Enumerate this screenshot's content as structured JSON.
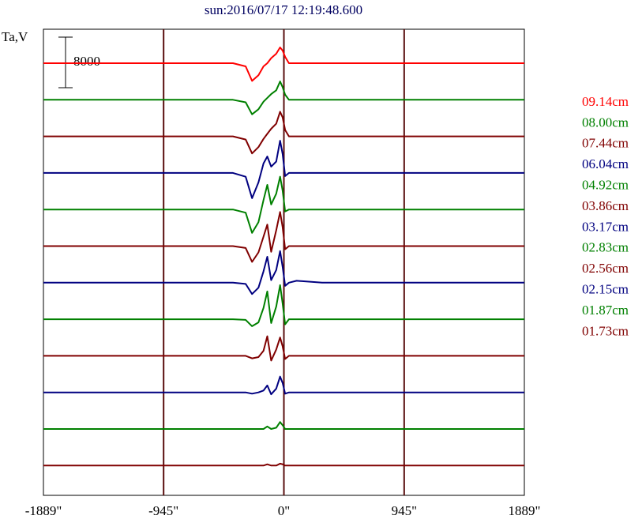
{
  "chart_data": {
    "type": "line",
    "title": "sun:2016/07/17 12:19:48.600",
    "y_label": "Ta,V",
    "scale_bar": 8000,
    "x": [
      -1889,
      -945,
      -400,
      -300,
      -250,
      -200,
      -160,
      -130,
      -100,
      -60,
      -30,
      -10,
      10,
      40,
      100,
      300,
      945,
      1889
    ],
    "xlim": [
      -1889,
      1889
    ],
    "xticks": [
      {
        "value": -1889,
        "label": "-1889\""
      },
      {
        "value": -945,
        "label": "-945\""
      },
      {
        "value": 0,
        "label": "0\""
      },
      {
        "value": 945,
        "label": "945\""
      },
      {
        "value": 1889,
        "label": "1889\""
      }
    ],
    "grid": true,
    "series": [
      {
        "name": "09.14cm",
        "color": "#ff0000",
        "values": [
          0,
          0,
          0,
          -500,
          -2800,
          -1900,
          -500,
          0,
          800,
          1500,
          2500,
          2000,
          1000,
          0,
          0,
          0,
          0,
          0
        ]
      },
      {
        "name": "08.00cm",
        "color": "#008000",
        "values": [
          0,
          0,
          0,
          -400,
          -2300,
          -1500,
          -300,
          300,
          900,
          1500,
          2900,
          2000,
          800,
          0,
          0,
          0,
          0,
          0
        ]
      },
      {
        "name": "07.44cm",
        "color": "#800000",
        "values": [
          0,
          0,
          0,
          -500,
          -2700,
          -1700,
          -400,
          400,
          1200,
          2000,
          3900,
          3000,
          1000,
          0,
          0,
          0,
          0,
          0
        ]
      },
      {
        "name": "06.04cm",
        "color": "#000080",
        "values": [
          0,
          0,
          0,
          -600,
          -4000,
          -1500,
          1500,
          2600,
          1000,
          1800,
          5100,
          3000,
          -500,
          0,
          0,
          0,
          0,
          0
        ]
      },
      {
        "name": "04.92cm",
        "color": "#008000",
        "values": [
          0,
          0,
          0,
          -500,
          -3700,
          -2000,
          1500,
          3900,
          800,
          2500,
          5200,
          3000,
          -300,
          0,
          0,
          0,
          0,
          0
        ]
      },
      {
        "name": "03.86cm",
        "color": "#800000",
        "values": [
          0,
          0,
          0,
          -300,
          -2500,
          -1000,
          1500,
          3400,
          -900,
          2500,
          5400,
          3000,
          -500,
          0,
          0,
          0,
          0,
          0
        ]
      },
      {
        "name": "03.17cm",
        "color": "#000080",
        "values": [
          0,
          0,
          0,
          -200,
          -1800,
          -800,
          1800,
          4100,
          400,
          2000,
          5000,
          2500,
          -500,
          0,
          300,
          0,
          0,
          0
        ]
      },
      {
        "name": "02.83cm",
        "color": "#008000",
        "values": [
          0,
          0,
          0,
          -100,
          -1100,
          -500,
          1800,
          4400,
          -600,
          2000,
          5400,
          2500,
          -800,
          0,
          0,
          0,
          0,
          0
        ]
      },
      {
        "name": "02.56cm",
        "color": "#800000",
        "values": [
          0,
          0,
          0,
          0,
          -400,
          -200,
          800,
          3100,
          -750,
          1000,
          2900,
          1500,
          -500,
          0,
          0,
          0,
          0,
          0
        ]
      },
      {
        "name": "02.15cm",
        "color": "#000080",
        "values": [
          0,
          0,
          0,
          0,
          -200,
          0,
          300,
          1100,
          -300,
          600,
          2500,
          1500,
          -200,
          0,
          0,
          0,
          0,
          0
        ]
      },
      {
        "name": "01.87cm",
        "color": "#008000",
        "values": [
          0,
          0,
          0,
          0,
          0,
          0,
          0,
          400,
          0,
          200,
          1100,
          600,
          0,
          0,
          0,
          0,
          0,
          0
        ]
      },
      {
        "name": "01.73cm",
        "color": "#800000",
        "values": [
          0,
          0,
          0,
          0,
          0,
          0,
          0,
          200,
          0,
          0,
          300,
          200,
          0,
          0,
          0,
          0,
          0,
          0
        ]
      }
    ]
  }
}
